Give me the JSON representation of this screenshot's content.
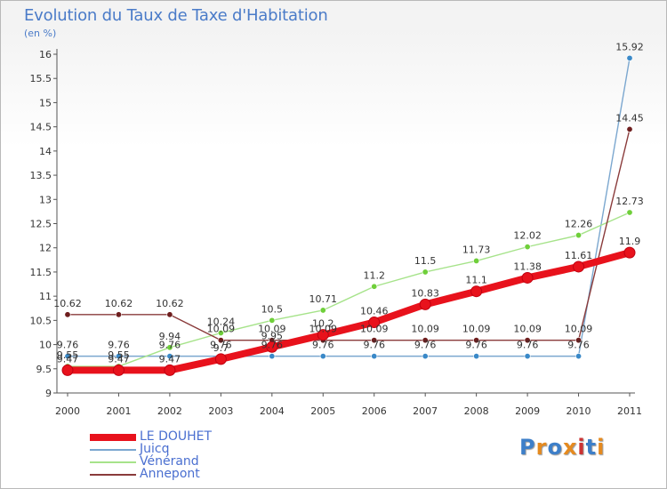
{
  "colors": {
    "title": "#4a7bc8",
    "legend_text": "#4a6fd0",
    "axis": "#555555",
    "grid": "#cfcfcf"
  },
  "logo": {
    "text": "Proxiti",
    "letter_colors": [
      "#3d7fc9",
      "#e58a1f",
      "#3d7fc9",
      "#e58a1f",
      "#cc3333",
      "#3d7fc9",
      "#e58a1f"
    ]
  },
  "chart_data": {
    "type": "line",
    "title": "Evolution du Taux de Taxe d'Habitation",
    "subtitle": "(en %)",
    "xlabel": "",
    "ylabel": "",
    "x": [
      "2000",
      "2001",
      "2002",
      "2003",
      "2004",
      "2005",
      "2006",
      "2007",
      "2008",
      "2009",
      "2010",
      "2011"
    ],
    "ylim": [
      9,
      16
    ],
    "yticks": [
      "9",
      "9.5",
      "10",
      "10.5",
      "11",
      "11.5",
      "12",
      "12.5",
      "13",
      "13.5",
      "14",
      "14.5",
      "15",
      "15.5",
      "16"
    ],
    "grid": false,
    "legend_position": "bottom-left",
    "series": [
      {
        "name": "LE DOUHET",
        "color": "#e8121c",
        "marker_color": "#e8121c",
        "values": [
          9.47,
          9.47,
          9.47,
          9.7,
          9.95,
          10.2,
          10.46,
          10.83,
          11.1,
          11.38,
          11.61,
          11.9
        ],
        "labels": [
          "9.47",
          "9.47",
          "9.47",
          "9.7",
          "9.95",
          "10.2",
          "10.46",
          "10.83",
          "11.1",
          "11.38",
          "11.61",
          "11.9"
        ]
      },
      {
        "name": "Juicq",
        "color": "#7ba7cf",
        "marker_color": "#3a89c8",
        "values": [
          9.76,
          9.76,
          9.76,
          9.76,
          9.76,
          9.76,
          9.76,
          9.76,
          9.76,
          9.76,
          9.76,
          15.92
        ],
        "labels": [
          "9.76",
          "9.76",
          "9.76",
          "9.76",
          "9.76",
          "9.76",
          "9.76",
          "9.76",
          "9.76",
          "9.76",
          "9.76",
          "15.92"
        ]
      },
      {
        "name": "Vénérand",
        "color": "#a6e38a",
        "marker_color": "#6fcf3a",
        "values": [
          9.55,
          9.55,
          9.94,
          10.24,
          10.5,
          10.71,
          11.2,
          11.5,
          11.73,
          12.02,
          12.26,
          12.73
        ],
        "labels": [
          "9.55",
          "9.55",
          "9.94",
          "10.24",
          "10.5",
          "10.71",
          "11.2",
          "11.5",
          "11.73",
          "12.02",
          "12.26",
          "12.73"
        ]
      },
      {
        "name": "Annepont",
        "color": "#8a3b3b",
        "marker_color": "#6e1e1e",
        "values": [
          10.62,
          10.62,
          10.62,
          10.09,
          10.09,
          10.09,
          10.09,
          10.09,
          10.09,
          10.09,
          10.09,
          14.45
        ],
        "labels": [
          "10.62",
          "10.62",
          "10.62",
          "10.09",
          "10.09",
          "10.09",
          "10.09",
          "10.09",
          "10.09",
          "10.09",
          "10.09",
          "14.45"
        ]
      }
    ]
  }
}
